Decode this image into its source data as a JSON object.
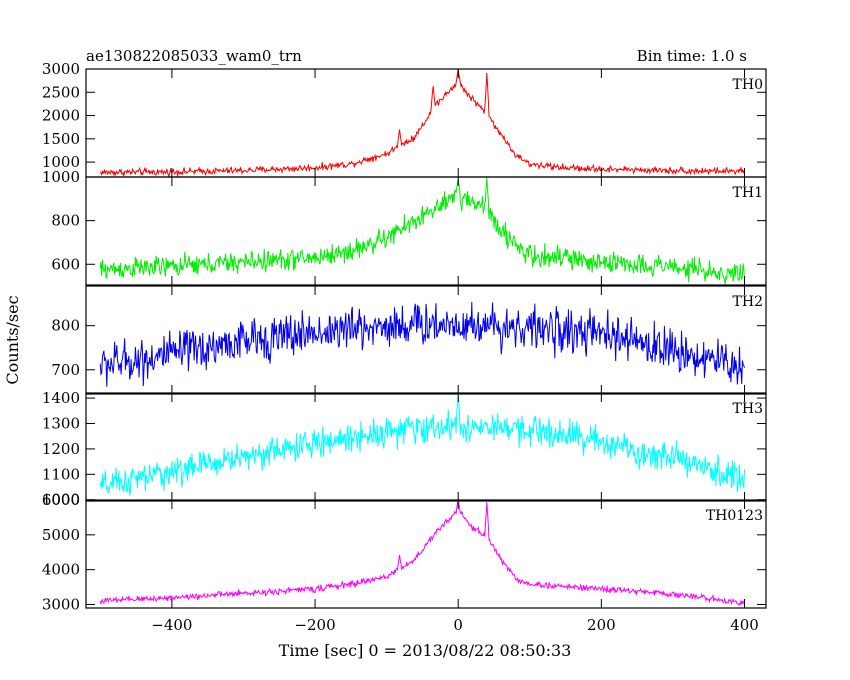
{
  "header": {
    "title": "ae130822085033_wam0_trn",
    "bin_time": "Bin time: 1.0 s"
  },
  "axes": {
    "xlabel": "Time [sec] 0 = 2013/08/22 08:50:33",
    "ylabel": "Counts/sec"
  },
  "chart_data": {
    "type": "line",
    "xlim": [
      -520,
      430
    ],
    "x_ticks": [
      -400,
      -200,
      0,
      200,
      400
    ],
    "x_tick_labels": [
      "−400",
      "−200",
      "0",
      "200",
      "400"
    ],
    "grid": false,
    "legend": "none",
    "x_range": [
      -500,
      400
    ],
    "panels": [
      {
        "label": "TH0",
        "color": "#ff0000",
        "ylim": [
          680,
          3000
        ],
        "y_ticks": [
          1000,
          1500,
          2000,
          2500,
          3000
        ],
        "y_tick_labels": [
          "1000",
          "1500",
          "2000",
          "2500",
          "3000"
        ],
        "profile": [
          [
            -500,
            780
          ],
          [
            -400,
            790
          ],
          [
            -300,
            820
          ],
          [
            -200,
            880
          ],
          [
            -150,
            960
          ],
          [
            -100,
            1180
          ],
          [
            -60,
            1550
          ],
          [
            -30,
            2250
          ],
          [
            0,
            2700
          ],
          [
            20,
            2350
          ],
          [
            40,
            2050
          ],
          [
            60,
            1600
          ],
          [
            80,
            1150
          ],
          [
            100,
            950
          ],
          [
            150,
            880
          ],
          [
            200,
            850
          ],
          [
            300,
            820
          ],
          [
            400,
            800
          ]
        ],
        "noise": 45,
        "spikes": [
          [
            -82,
            1700
          ],
          [
            -35,
            2650
          ],
          [
            0,
            3000
          ],
          [
            40,
            2900
          ]
        ]
      },
      {
        "label": "TH1",
        "color": "#00ee00",
        "ylim": [
          505,
          1000
        ],
        "y_ticks": [
          600,
          800,
          1000
        ],
        "y_tick_labels": [
          "600",
          "800",
          "1000"
        ],
        "profile": [
          [
            -500,
            575
          ],
          [
            -400,
            590
          ],
          [
            -300,
            610
          ],
          [
            -200,
            630
          ],
          [
            -150,
            660
          ],
          [
            -100,
            720
          ],
          [
            -50,
            820
          ],
          [
            0,
            910
          ],
          [
            40,
            860
          ],
          [
            60,
            760
          ],
          [
            80,
            680
          ],
          [
            100,
            640
          ],
          [
            200,
            610
          ],
          [
            300,
            590
          ],
          [
            400,
            545
          ]
        ],
        "noise": 30,
        "spikes": [
          [
            0,
            1000
          ],
          [
            40,
            990
          ]
        ]
      },
      {
        "label": "TH2",
        "color": "#0000ee",
        "ylim": [
          645,
          890
        ],
        "y_ticks": [
          700,
          800
        ],
        "y_tick_labels": [
          "700",
          "800"
        ],
        "profile": [
          [
            -500,
            710
          ],
          [
            -400,
            735
          ],
          [
            -300,
            765
          ],
          [
            -200,
            785
          ],
          [
            -100,
            800
          ],
          [
            0,
            805
          ],
          [
            100,
            795
          ],
          [
            200,
            780
          ],
          [
            300,
            745
          ],
          [
            400,
            705
          ]
        ],
        "noise": 30,
        "spikes": []
      },
      {
        "label": "TH3",
        "color": "#00ffff",
        "ylim": [
          995,
          1420
        ],
        "y_ticks": [
          1000,
          1100,
          1200,
          1300,
          1400
        ],
        "y_tick_labels": [
          "1000",
          "1100",
          "1200",
          "1300",
          "1400"
        ],
        "profile": [
          [
            -500,
            1050
          ],
          [
            -400,
            1110
          ],
          [
            -300,
            1170
          ],
          [
            -200,
            1220
          ],
          [
            -100,
            1270
          ],
          [
            0,
            1290
          ],
          [
            100,
            1270
          ],
          [
            200,
            1230
          ],
          [
            300,
            1160
          ],
          [
            400,
            1080
          ]
        ],
        "noise": 35,
        "spikes": [
          [
            0,
            1420
          ]
        ]
      },
      {
        "label": "TH0123",
        "color": "#ff00ff",
        "ylim": [
          2900,
          6000
        ],
        "y_ticks": [
          3000,
          4000,
          5000,
          6000
        ],
        "y_tick_labels": [
          "3000",
          "4000",
          "5000",
          "6000"
        ],
        "profile": [
          [
            -500,
            3100
          ],
          [
            -400,
            3200
          ],
          [
            -300,
            3320
          ],
          [
            -200,
            3450
          ],
          [
            -150,
            3580
          ],
          [
            -100,
            3800
          ],
          [
            -60,
            4300
          ],
          [
            -30,
            5100
          ],
          [
            0,
            5700
          ],
          [
            20,
            5200
          ],
          [
            40,
            4950
          ],
          [
            60,
            4300
          ],
          [
            80,
            3750
          ],
          [
            100,
            3580
          ],
          [
            200,
            3450
          ],
          [
            300,
            3300
          ],
          [
            400,
            3050
          ]
        ],
        "noise": 55,
        "spikes": [
          [
            -82,
            4400
          ],
          [
            0,
            6000
          ],
          [
            40,
            5950
          ]
        ]
      }
    ]
  }
}
